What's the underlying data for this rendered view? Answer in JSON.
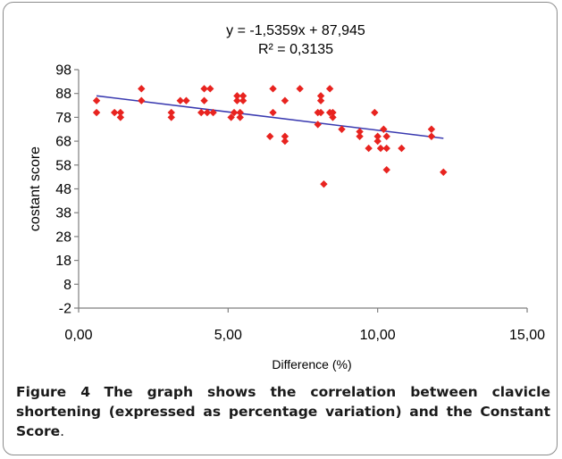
{
  "caption": {
    "label": "Figure 4",
    "text": "The graph shows the correlation between clavicle shortening (expressed as percentage variation) and the Constant Score",
    "end": "."
  },
  "chart_data": {
    "type": "scatter",
    "title": "",
    "equation": "y = -1,5359x + 87,945",
    "r_squared": "R² = 0,3135",
    "xlabel": "Difference (%)",
    "ylabel": "costant score",
    "xlim": [
      0,
      15
    ],
    "ylim": [
      -2,
      98
    ],
    "x_ticks": [
      "0,00",
      "5,00",
      "10,00",
      "15,00"
    ],
    "x_tick_values": [
      0,
      5,
      10,
      15
    ],
    "y_ticks": [
      "98",
      "88",
      "78",
      "68",
      "58",
      "48",
      "38",
      "28",
      "18",
      "8",
      "-2"
    ],
    "y_tick_values": [
      98,
      88,
      78,
      68,
      58,
      48,
      38,
      28,
      18,
      8,
      -2
    ],
    "grid": false,
    "colors": {
      "points": "#e8231f",
      "trendline": "#3a3ab0",
      "axis": "#7f7f7f"
    },
    "trendline": {
      "slope": -1.5359,
      "intercept": 87.945,
      "x_range": [
        0.6,
        12.2
      ]
    },
    "points": [
      [
        0.6,
        85
      ],
      [
        0.6,
        80
      ],
      [
        1.2,
        80
      ],
      [
        1.4,
        78
      ],
      [
        1.4,
        80
      ],
      [
        2.1,
        90
      ],
      [
        2.1,
        85
      ],
      [
        3.1,
        80
      ],
      [
        3.1,
        78
      ],
      [
        3.4,
        85
      ],
      [
        3.6,
        85
      ],
      [
        4.1,
        80
      ],
      [
        4.2,
        90
      ],
      [
        4.2,
        85
      ],
      [
        4.3,
        80
      ],
      [
        4.4,
        90
      ],
      [
        4.5,
        80
      ],
      [
        5.1,
        78
      ],
      [
        5.2,
        80
      ],
      [
        5.3,
        85
      ],
      [
        5.3,
        87
      ],
      [
        5.4,
        80
      ],
      [
        5.4,
        78
      ],
      [
        5.5,
        87
      ],
      [
        5.5,
        85
      ],
      [
        6.4,
        70
      ],
      [
        6.5,
        90
      ],
      [
        6.5,
        80
      ],
      [
        6.9,
        85
      ],
      [
        6.9,
        70
      ],
      [
        6.9,
        68
      ],
      [
        7.4,
        90
      ],
      [
        8.0,
        75
      ],
      [
        8.0,
        80
      ],
      [
        8.1,
        87
      ],
      [
        8.1,
        85
      ],
      [
        8.1,
        80
      ],
      [
        8.2,
        50
      ],
      [
        8.4,
        90
      ],
      [
        8.4,
        80
      ],
      [
        8.5,
        78
      ],
      [
        8.5,
        80
      ],
      [
        8.8,
        73
      ],
      [
        9.4,
        72
      ],
      [
        9.4,
        70
      ],
      [
        9.7,
        65
      ],
      [
        9.9,
        80
      ],
      [
        10.0,
        70
      ],
      [
        10.0,
        68
      ],
      [
        10.1,
        65
      ],
      [
        10.2,
        73
      ],
      [
        10.3,
        70
      ],
      [
        10.3,
        65
      ],
      [
        10.3,
        56
      ],
      [
        10.8,
        65
      ],
      [
        11.8,
        73
      ],
      [
        11.8,
        70
      ],
      [
        12.2,
        55
      ]
    ]
  }
}
